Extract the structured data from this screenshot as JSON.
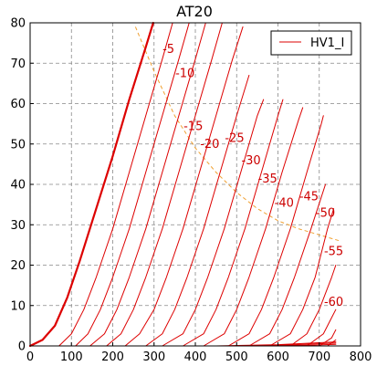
{
  "chart_data": {
    "type": "line",
    "title": "AT20",
    "xlabel": "",
    "ylabel": "",
    "xlim": [
      0,
      800
    ],
    "ylim": [
      0,
      80
    ],
    "xticks": [
      0,
      100,
      200,
      300,
      400,
      500,
      600,
      700,
      800
    ],
    "yticks": [
      0,
      10,
      20,
      30,
      40,
      50,
      60,
      70,
      80
    ],
    "grid": true,
    "legend": {
      "position": "top-right",
      "entries": [
        "HV1_I"
      ]
    },
    "series_color": "#dd0000",
    "limit_line_color": "#f0a030",
    "series": [
      {
        "name": "HV1_I",
        "label": "0",
        "points": [
          [
            0,
            0
          ],
          [
            30,
            1.5
          ],
          [
            60,
            5
          ],
          [
            90,
            12
          ],
          [
            120,
            21
          ],
          [
            160,
            34
          ],
          [
            200,
            47
          ],
          [
            240,
            61
          ],
          [
            280,
            74
          ],
          [
            298,
            80
          ]
        ]
      },
      {
        "label": "-5",
        "points": [
          [
            70,
            0
          ],
          [
            100,
            3
          ],
          [
            130,
            9
          ],
          [
            160,
            17
          ],
          [
            200,
            29
          ],
          [
            240,
            43
          ],
          [
            280,
            57
          ],
          [
            320,
            71
          ],
          [
            345,
            80
          ]
        ]
      },
      {
        "label": "-10",
        "points": [
          [
            110,
            0
          ],
          [
            140,
            3
          ],
          [
            170,
            9
          ],
          [
            200,
            17
          ],
          [
            240,
            29
          ],
          [
            280,
            43
          ],
          [
            320,
            57
          ],
          [
            360,
            71
          ],
          [
            385,
            80
          ]
        ]
      },
      {
        "label": "-15",
        "points": [
          [
            145,
            0
          ],
          [
            180,
            3
          ],
          [
            210,
            9
          ],
          [
            240,
            17
          ],
          [
            280,
            29
          ],
          [
            320,
            43
          ],
          [
            360,
            57
          ],
          [
            400,
            71
          ],
          [
            425,
            80
          ]
        ]
      },
      {
        "label": "-20",
        "points": [
          [
            185,
            0
          ],
          [
            220,
            3
          ],
          [
            250,
            9
          ],
          [
            280,
            17
          ],
          [
            320,
            29
          ],
          [
            360,
            43
          ],
          [
            400,
            57
          ],
          [
            440,
            71
          ],
          [
            465,
            80
          ]
        ]
      },
      {
        "label": "-25",
        "points": [
          [
            230,
            0
          ],
          [
            265,
            3
          ],
          [
            300,
            9
          ],
          [
            330,
            17
          ],
          [
            370,
            29
          ],
          [
            410,
            43
          ],
          [
            450,
            57
          ],
          [
            490,
            71
          ],
          [
            515,
            79
          ]
        ]
      },
      {
        "label": "-30",
        "points": [
          [
            280,
            0
          ],
          [
            320,
            3
          ],
          [
            350,
            9
          ],
          [
            380,
            17
          ],
          [
            420,
            29
          ],
          [
            460,
            43
          ],
          [
            500,
            57
          ],
          [
            530,
            67
          ]
        ]
      },
      {
        "label": "-35",
        "points": [
          [
            320,
            0
          ],
          [
            370,
            3
          ],
          [
            400,
            9
          ],
          [
            430,
            17
          ],
          [
            470,
            29
          ],
          [
            510,
            43
          ],
          [
            550,
            57
          ],
          [
            565,
            61
          ]
        ]
      },
      {
        "label": "-40",
        "points": [
          [
            370,
            0
          ],
          [
            420,
            3
          ],
          [
            450,
            9
          ],
          [
            480,
            17
          ],
          [
            520,
            29
          ],
          [
            560,
            43
          ],
          [
            600,
            57
          ],
          [
            612,
            61
          ]
        ]
      },
      {
        "label": "-45",
        "points": [
          [
            420,
            0
          ],
          [
            470,
            3
          ],
          [
            500,
            9
          ],
          [
            530,
            17
          ],
          [
            570,
            29
          ],
          [
            610,
            43
          ],
          [
            650,
            56
          ],
          [
            660,
            59
          ]
        ]
      },
      {
        "label": "-50",
        "points": [
          [
            480,
            0
          ],
          [
            530,
            3
          ],
          [
            560,
            9
          ],
          [
            590,
            17
          ],
          [
            630,
            29
          ],
          [
            670,
            43
          ],
          [
            705,
            55
          ],
          [
            710,
            57
          ]
        ]
      },
      {
        "label": "-55",
        "points": [
          [
            530,
            0
          ],
          [
            580,
            3
          ],
          [
            610,
            9
          ],
          [
            640,
            17
          ],
          [
            680,
            29
          ],
          [
            715,
            40
          ]
        ]
      },
      {
        "label": "-60",
        "points": [
          [
            580,
            0
          ],
          [
            630,
            3
          ],
          [
            660,
            9
          ],
          [
            690,
            17
          ],
          [
            720,
            29
          ],
          [
            735,
            34
          ]
        ]
      },
      {
        "label": "",
        "points": [
          [
            630,
            0
          ],
          [
            670,
            3
          ],
          [
            700,
            9
          ],
          [
            730,
            17
          ],
          [
            740,
            20
          ]
        ]
      },
      {
        "label": "",
        "points": [
          [
            670,
            0
          ],
          [
            710,
            3
          ],
          [
            730,
            7
          ],
          [
            740,
            9
          ]
        ]
      },
      {
        "label": "",
        "points": [
          [
            700,
            0
          ],
          [
            730,
            2
          ],
          [
            740,
            4
          ]
        ]
      },
      {
        "label": "",
        "points": [
          [
            720,
            0
          ],
          [
            740,
            1.5
          ]
        ]
      },
      {
        "label": "",
        "points": [
          [
            450,
            0
          ],
          [
            600,
            0.3
          ],
          [
            740,
            1
          ]
        ]
      },
      {
        "label": "",
        "points": [
          [
            500,
            0
          ],
          [
            640,
            0.3
          ],
          [
            740,
            0.7
          ]
        ]
      },
      {
        "label": "",
        "points": [
          [
            550,
            0
          ],
          [
            680,
            0.2
          ],
          [
            740,
            0.4
          ]
        ]
      }
    ],
    "max_dissipation_line": {
      "style": "dashed",
      "points": [
        [
          255,
          79
        ],
        [
          300,
          68
        ],
        [
          350,
          57
        ],
        [
          400,
          49
        ],
        [
          450,
          43
        ],
        [
          500,
          38
        ],
        [
          550,
          34
        ],
        [
          600,
          31
        ],
        [
          650,
          29
        ],
        [
          700,
          27.5
        ],
        [
          750,
          26
        ]
      ]
    },
    "curve_labels": [
      {
        "text": "-5",
        "x": 335,
        "y": 72.5
      },
      {
        "text": "-10",
        "x": 375,
        "y": 66.5
      },
      {
        "text": "-15",
        "x": 395,
        "y": 53.5
      },
      {
        "text": "-20",
        "x": 435,
        "y": 49
      },
      {
        "text": "-25",
        "x": 495,
        "y": 50.5
      },
      {
        "text": "-30",
        "x": 535,
        "y": 45
      },
      {
        "text": "-35",
        "x": 575,
        "y": 40.5
      },
      {
        "text": "-40",
        "x": 615,
        "y": 34.5
      },
      {
        "text": "-45",
        "x": 675,
        "y": 36
      },
      {
        "text": "-50",
        "x": 715,
        "y": 32
      },
      {
        "text": "-55",
        "x": 735,
        "y": 22.5
      },
      {
        "text": "-60",
        "x": 735,
        "y": 10
      }
    ]
  }
}
